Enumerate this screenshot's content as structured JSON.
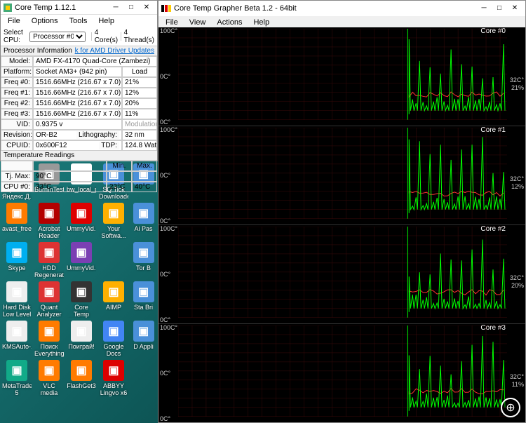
{
  "ct": {
    "title": "Core Temp 1.12.1",
    "menu": [
      "File",
      "Options",
      "Tools",
      "Help"
    ],
    "sel_label": "Select CPU:",
    "processor_sel": "Processor #0",
    "cores_label": "4   Core(s)",
    "threads_label": "4   Thread(s)",
    "proc_info_h": "Processor Information",
    "driver_link": "k for AMD Driver Updates",
    "rows": {
      "model": "Model:",
      "model_v": "AMD FX-4170 Quad-Core (Zambezi)",
      "platform": "Platform:",
      "platform_v": "Socket AM3+ (942 pin)",
      "load_h": "Load",
      "f0": "Freq #0:",
      "f0_v": "1516.66MHz (216.67 x 7.0)",
      "f0_l": "21%",
      "f1": "Freq #1:",
      "f1_v": "1516.66MHz (216.67 x 7.0)",
      "f1_l": "12%",
      "f2": "Freq #2:",
      "f2_v": "1516.66MHz (216.67 x 7.0)",
      "f2_l": "20%",
      "f3": "Freq #3:",
      "f3_v": "1516.66MHz (216.67 x 7.0)",
      "f3_l": "11%",
      "vid": "VID:",
      "vid_v": "0.9375 v",
      "mod": "Modulation:",
      "rev": "Revision:",
      "rev_v": "OR-B2",
      "lith": "Lithography:",
      "lith_v": "32 nm",
      "cpuid": "CPUID:",
      "cpuid_v": "0x600F12",
      "tdp": "TDP:",
      "tdp_v": "124.8 Watts"
    },
    "temp_h": "Temperature Readings",
    "temp": {
      "min": "Min.",
      "max": "Max.",
      "tjmax": "Tj. Max:",
      "tjmax_v": "90°C",
      "cpu0": "CPU #0:",
      "cpu0_v": "33°C",
      "cpu0_min": "23°C",
      "cpu0_max": "40°C"
    }
  },
  "gr": {
    "title": "Core Temp Grapher Beta 1.2 - 64bit",
    "menu": [
      "File",
      "View",
      "Actions",
      "Help"
    ],
    "cores": [
      {
        "name": "Core #0",
        "r1": "32C°",
        "r2": "21%"
      },
      {
        "name": "Core #1",
        "r1": "32C°",
        "r2": "12%"
      },
      {
        "name": "Core #2",
        "r1": "32C°",
        "r2": "20%"
      },
      {
        "name": "Core #3",
        "r1": "32C°",
        "r2": "11%"
      }
    ],
    "ytop": "100C°",
    "ymid": "0C°",
    "ybot": "0C°",
    "chart_style": {
      "bg": "#000000",
      "grid": "#3a0a0a",
      "series1": "#00ff00",
      "series2": "#ff3030"
    }
  },
  "desktop": {
    "icons": [
      {
        "l": "Скриншоты Яндекс.Д...",
        "c": "#f0c040"
      },
      {
        "l": "BurnInTest",
        "c": "#999"
      },
      {
        "l": "bw_local_p...",
        "c": "#fff"
      },
      {
        "l": "SQ Tick Downloader",
        "c": "#4a90d9"
      },
      {
        "l": "",
        "c": "#4a90d9"
      },
      {
        "l": "avast_free_...",
        "c": "#ff7b00"
      },
      {
        "l": "Acrobat Reader DC",
        "c": "#b30000"
      },
      {
        "l": "UmmyVid...",
        "c": "#d00"
      },
      {
        "l": "Your Softwa...",
        "c": "#ffb000"
      },
      {
        "l": "Ai Pas",
        "c": "#4a90d9"
      },
      {
        "l": "Skype",
        "c": "#00aff0"
      },
      {
        "l": "HDD Regenerator",
        "c": "#d33"
      },
      {
        "l": "UmmyVid...",
        "c": "#7b3fb3"
      },
      {
        "l": "",
        "c": ""
      },
      {
        "l": "Tor B",
        "c": "#4a90d9"
      },
      {
        "l": "Hard Disk Low Level ...",
        "c": "#eee"
      },
      {
        "l": "Quant Analyzer 4",
        "c": "#d33"
      },
      {
        "l": "Core Temp Gadget...",
        "c": "#333"
      },
      {
        "l": "AIMP",
        "c": "#ffb000"
      },
      {
        "l": "Sta Bri",
        "c": "#4a90d9"
      },
      {
        "l": "KMSAuto-...",
        "c": "#eee"
      },
      {
        "l": "Поиск Everything",
        "c": "#ff7b00"
      },
      {
        "l": "Поиграй!",
        "c": "#eee"
      },
      {
        "l": "Google Docs",
        "c": "#4285f4"
      },
      {
        "l": "D Appli",
        "c": "#4a90d9"
      },
      {
        "l": "MetaTrader 5",
        "c": "#1a8"
      },
      {
        "l": "VLC media player",
        "c": "#ff7b00"
      },
      {
        "l": "FlashGet3",
        "c": "#ff7b00"
      },
      {
        "l": "ABBYY Lingvo x6",
        "c": "#d00"
      },
      {
        "l": "",
        "c": ""
      }
    ]
  }
}
